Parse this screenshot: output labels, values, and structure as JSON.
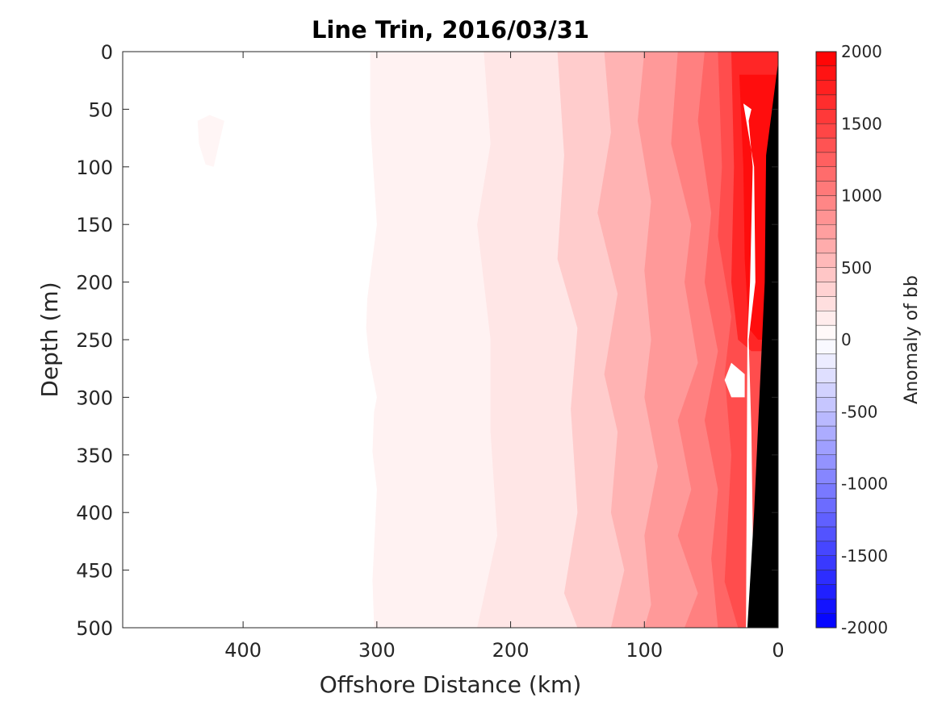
{
  "chart_data": {
    "type": "heatmap",
    "title": "Line Trin, 2016/03/31",
    "xlabel": "Offshore Distance (km)",
    "ylabel": "Depth (m)",
    "xlim": [
      490,
      0
    ],
    "ylim": [
      0,
      500
    ],
    "x_reversed": true,
    "y_reversed": true,
    "x_ticks": [
      400,
      300,
      200,
      100,
      0
    ],
    "y_ticks": [
      0,
      50,
      100,
      150,
      200,
      250,
      300,
      350,
      400,
      450,
      500
    ],
    "colorbar": {
      "label": "Anomaly of bb",
      "range": [
        -2000,
        2000
      ],
      "levels": 40,
      "ticks": [
        2000,
        1500,
        1000,
        500,
        0,
        -500,
        -1000,
        -1500,
        -2000
      ],
      "low_color": "#0000ff",
      "mid_color": "#ffffff",
      "high_color": "#ff0000"
    },
    "bands": [
      {
        "value": 100,
        "outer": [
          [
            305,
            0
          ],
          [
            305,
            60
          ],
          [
            300,
            150
          ],
          [
            310,
            240
          ],
          [
            300,
            300
          ],
          [
            305,
            330
          ],
          [
            300,
            380
          ],
          [
            305,
            500
          ],
          [
            0,
            500
          ],
          [
            0,
            0
          ]
        ]
      },
      {
        "value": 200,
        "outer": [
          [
            220,
            0
          ],
          [
            215,
            80
          ],
          [
            225,
            150
          ],
          [
            215,
            250
          ],
          [
            215,
            330
          ],
          [
            210,
            420
          ],
          [
            225,
            500
          ],
          [
            0,
            500
          ],
          [
            0,
            0
          ]
        ]
      },
      {
        "value": 400,
        "outer": [
          [
            165,
            0
          ],
          [
            160,
            90
          ],
          [
            165,
            180
          ],
          [
            150,
            240
          ],
          [
            155,
            310
          ],
          [
            150,
            400
          ],
          [
            160,
            470
          ],
          [
            150,
            500
          ],
          [
            0,
            500
          ],
          [
            0,
            0
          ]
        ]
      },
      {
        "value": 600,
        "outer": [
          [
            130,
            0
          ],
          [
            125,
            70
          ],
          [
            135,
            140
          ],
          [
            120,
            210
          ],
          [
            130,
            280
          ],
          [
            120,
            330
          ],
          [
            125,
            400
          ],
          [
            115,
            450
          ],
          [
            125,
            500
          ],
          [
            0,
            500
          ],
          [
            0,
            0
          ]
        ]
      },
      {
        "value": 800,
        "outer": [
          [
            100,
            0
          ],
          [
            105,
            60
          ],
          [
            95,
            130
          ],
          [
            100,
            190
          ],
          [
            95,
            250
          ],
          [
            100,
            300
          ],
          [
            90,
            360
          ],
          [
            100,
            420
          ],
          [
            95,
            480
          ],
          [
            100,
            500
          ],
          [
            0,
            500
          ],
          [
            0,
            0
          ]
        ]
      },
      {
        "value": 1000,
        "outer": [
          [
            75,
            0
          ],
          [
            80,
            80
          ],
          [
            65,
            150
          ],
          [
            70,
            200
          ],
          [
            60,
            270
          ],
          [
            75,
            320
          ],
          [
            65,
            380
          ],
          [
            75,
            420
          ],
          [
            60,
            470
          ],
          [
            70,
            500
          ],
          [
            0,
            500
          ],
          [
            0,
            0
          ]
        ]
      },
      {
        "value": 1200,
        "outer": [
          [
            55,
            0
          ],
          [
            60,
            60
          ],
          [
            50,
            140
          ],
          [
            55,
            200
          ],
          [
            45,
            260
          ],
          [
            55,
            320
          ],
          [
            45,
            380
          ],
          [
            50,
            440
          ],
          [
            45,
            500
          ],
          [
            0,
            500
          ],
          [
            0,
            0
          ]
        ]
      },
      {
        "value": 1400,
        "outer": [
          [
            45,
            0
          ],
          [
            42,
            100
          ],
          [
            45,
            160
          ],
          [
            35,
            230
          ],
          [
            40,
            280
          ],
          [
            35,
            350
          ],
          [
            40,
            460
          ],
          [
            30,
            500
          ],
          [
            0,
            500
          ],
          [
            0,
            0
          ]
        ]
      },
      {
        "value": 1700,
        "outer": [
          [
            35,
            0
          ],
          [
            33,
            100
          ],
          [
            35,
            200
          ],
          [
            30,
            250
          ],
          [
            20,
            260
          ],
          [
            0,
            260
          ],
          [
            0,
            0
          ]
        ]
      },
      {
        "value": 1900,
        "outer": [
          [
            29,
            20
          ],
          [
            26,
            100
          ],
          [
            25,
            180
          ],
          [
            22,
            240
          ],
          [
            15,
            250
          ],
          [
            0,
            250
          ],
          [
            0,
            20
          ]
        ]
      }
    ],
    "white_gaps": [
      {
        "value": 0,
        "outer": [
          [
            490,
            0
          ],
          [
            310,
            0
          ],
          [
            308,
            60
          ],
          [
            305,
            150
          ],
          [
            308,
            240
          ],
          [
            302,
            310
          ],
          [
            305,
            400
          ],
          [
            302,
            500
          ],
          [
            490,
            500
          ]
        ]
      },
      {
        "value": 0,
        "outer": [
          [
            26,
            0
          ],
          [
            40,
            0
          ],
          [
            20,
            0
          ]
        ]
      },
      {
        "value": 0,
        "outer": [
          [
            20,
            50
          ],
          [
            26,
            45
          ],
          [
            18,
            100
          ],
          [
            17,
            200
          ],
          [
            22,
            250
          ],
          [
            20,
            330
          ],
          [
            18,
            500
          ],
          [
            24,
            500
          ],
          [
            23,
            250
          ],
          [
            21,
            200
          ],
          [
            19,
            100
          ],
          [
            22,
            60
          ]
        ]
      },
      {
        "value": 0,
        "outer": [
          [
            40,
            285
          ],
          [
            35,
            270
          ],
          [
            25,
            280
          ],
          [
            25,
            300
          ],
          [
            35,
            300
          ]
        ]
      }
    ],
    "blobs": [
      {
        "value": 80,
        "points": [
          [
            434,
            60
          ],
          [
            425,
            55
          ],
          [
            414,
            60
          ],
          [
            418,
            80
          ],
          [
            422,
            100
          ],
          [
            428,
            98
          ],
          [
            433,
            80
          ]
        ]
      }
    ],
    "land_mask": {
      "color": "#000000",
      "outer": [
        [
          0,
          0
        ],
        [
          -1,
          0
        ],
        [
          9,
          90
        ],
        [
          10,
          200
        ],
        [
          14,
          300
        ],
        [
          18,
          400
        ],
        [
          23,
          500
        ],
        [
          0,
          500
        ]
      ]
    }
  }
}
